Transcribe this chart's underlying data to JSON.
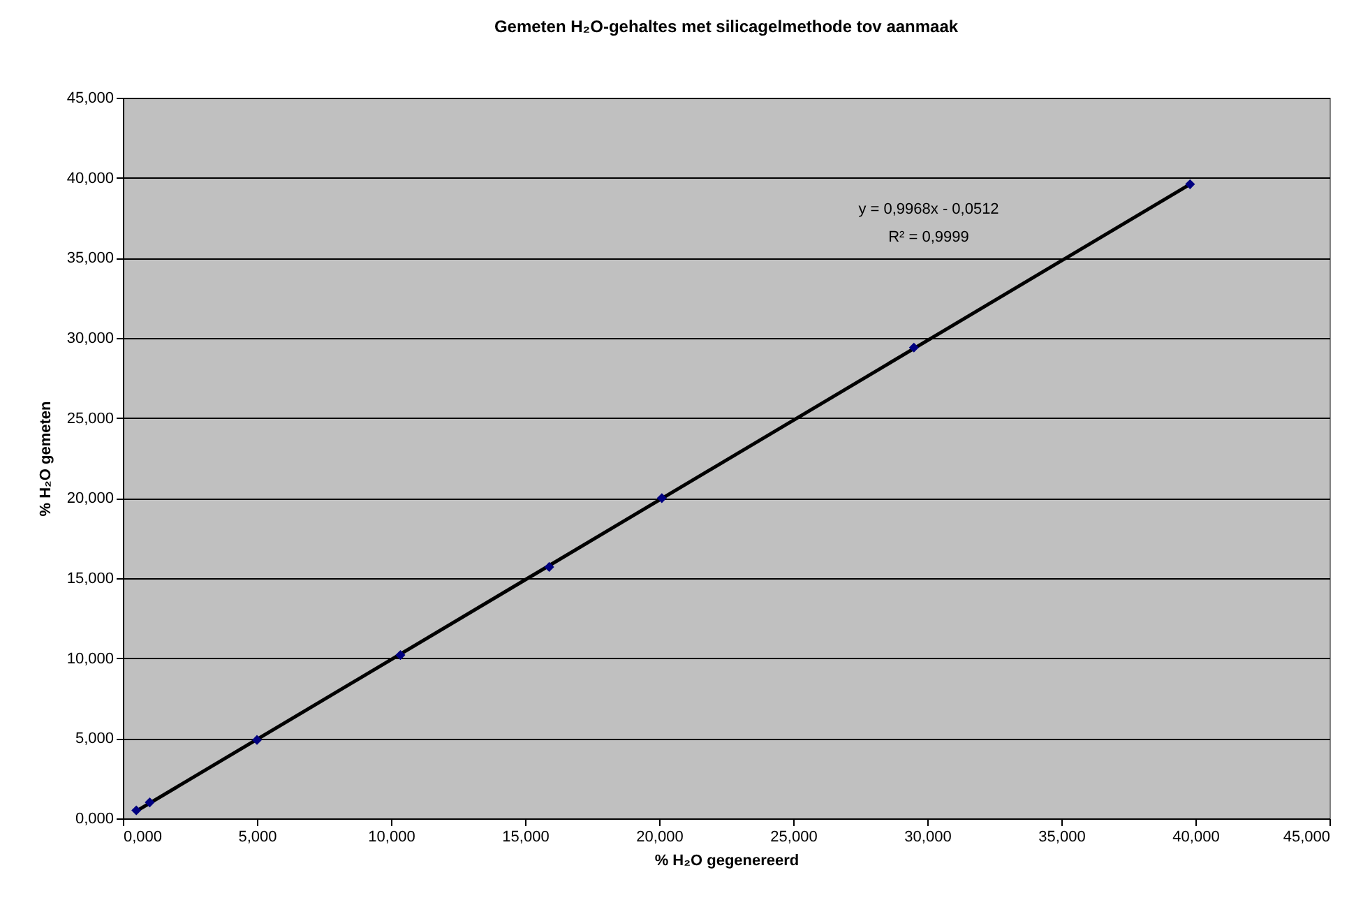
{
  "chart_data": {
    "type": "scatter",
    "title": "Gemeten H₂O-gehaltes met silicagelmethode tov aanmaak",
    "xlabel": "% H₂O gegenereerd",
    "ylabel": "% H₂O gemeten",
    "x": [
      0.5,
      1.0,
      5.0,
      10.35,
      15.9,
      20.1,
      29.5,
      39.8
    ],
    "series": [
      {
        "color": "#000080",
        "values": [
          0.5,
          1.0,
          4.9,
          10.2,
          15.7,
          20.0,
          29.4,
          39.6
        ]
      },
      {
        "type": "line",
        "color": "#000000",
        "marker": "none",
        "x": [
          0.5,
          39.8
        ],
        "values": [
          0.45,
          39.6
        ]
      }
    ],
    "xlim": [
      0,
      45
    ],
    "ylim": [
      0,
      45
    ],
    "xticks": [
      {
        "value": 0,
        "label": "0,000"
      },
      {
        "value": 5,
        "label": "5,000"
      },
      {
        "value": 10,
        "label": "10,000"
      },
      {
        "value": 15,
        "label": "15,000"
      },
      {
        "value": 20,
        "label": "20,000"
      },
      {
        "value": 25,
        "label": "25,000"
      },
      {
        "value": 30,
        "label": "30,000"
      },
      {
        "value": 35,
        "label": "35,000"
      },
      {
        "value": 40,
        "label": "40,000"
      },
      {
        "value": 45,
        "label": "45,000"
      }
    ],
    "yticks": [
      {
        "value": 0,
        "label": "0,000"
      },
      {
        "value": 5,
        "label": "5,000"
      },
      {
        "value": 10,
        "label": "10,000"
      },
      {
        "value": 15,
        "label": "15,000"
      },
      {
        "value": 20,
        "label": "20,000"
      },
      {
        "value": 25,
        "label": "25,000"
      },
      {
        "value": 30,
        "label": "30,000"
      },
      {
        "value": 35,
        "label": "35,000"
      },
      {
        "value": 40,
        "label": "40,000"
      },
      {
        "value": 45,
        "label": "45,000"
      }
    ],
    "annotations": [
      "y = 0,9968x - 0,0512",
      "R² = 0,9999"
    ],
    "grid": "y",
    "marker": "diamond",
    "line_style": "solid"
  }
}
